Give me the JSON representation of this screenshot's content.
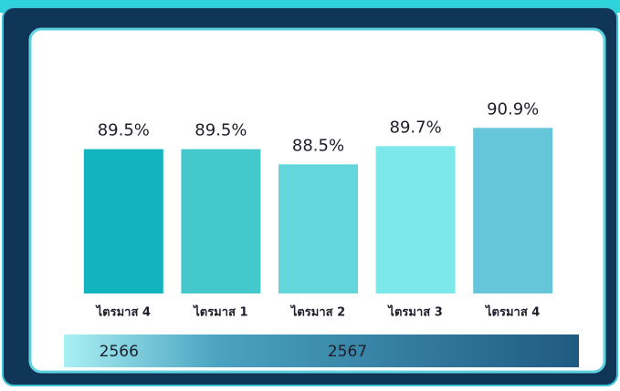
{
  "chart_data": {
    "type": "bar",
    "categories": [
      "ไตรมาส 4",
      "ไตรมาส 1",
      "ไตรมาส 2",
      "ไตรมาส 3",
      "ไตรมาส 4"
    ],
    "values": [
      89.5,
      89.5,
      88.5,
      89.7,
      90.9
    ],
    "value_labels": [
      "89.5%",
      "89.5%",
      "88.5%",
      "89.7%",
      "90.9%"
    ],
    "colors": [
      "#12b5bd",
      "#45c8cb",
      "#62d6da",
      "#7de8ea",
      "#66c6d9"
    ],
    "ylim": [
      80,
      95
    ],
    "groups": [
      {
        "label": "2566",
        "span": 1
      },
      {
        "label": "2567",
        "span": 4
      }
    ]
  }
}
